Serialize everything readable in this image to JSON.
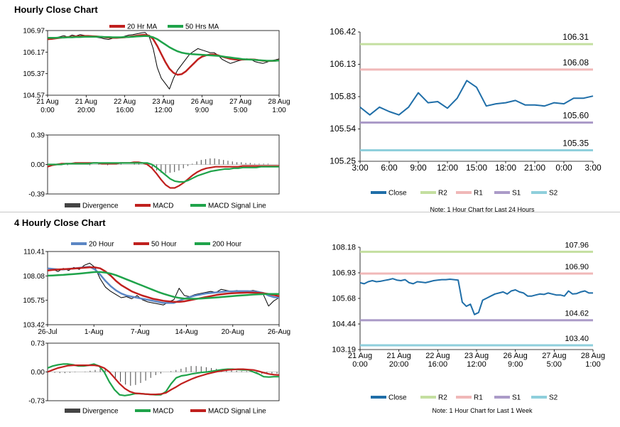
{
  "hourly_title": "Hourly Close Chart",
  "four_hourly_title": "4 Hourly Close Chart",
  "chart_data": [
    {
      "id": "c1",
      "type": "line",
      "legend": [
        "20 Hr MA",
        "50 Hrs MA"
      ],
      "y_ticks": [
        "106.97",
        "106.17",
        "105.37",
        "104.57"
      ],
      "ylim": [
        104.57,
        106.97
      ],
      "x_ticks": [
        [
          "21 Aug",
          "0:00"
        ],
        [
          "21 Aug",
          "20:00"
        ],
        [
          "22 Aug",
          "16:00"
        ],
        [
          "23 Aug",
          "12:00"
        ],
        [
          "26 Aug",
          "9:00"
        ],
        [
          "27 Aug",
          "5:00"
        ],
        [
          "28 Aug",
          "1:00"
        ]
      ],
      "series": [
        {
          "name": "Close",
          "color": "#000000",
          "values": [
            106.65,
            106.72,
            106.7,
            106.74,
            106.78,
            106.73,
            106.8,
            106.77,
            106.82,
            106.79,
            106.76,
            106.74,
            106.72,
            106.7,
            106.66,
            106.64,
            106.68,
            106.7,
            106.72,
            106.76,
            106.8,
            106.82,
            106.85,
            106.88,
            106.9,
            106.75,
            106.3,
            105.6,
            105.2,
            105.0,
            104.8,
            105.2,
            105.5,
            105.7,
            105.9,
            106.1,
            106.2,
            106.3,
            106.25,
            106.2,
            106.15,
            106.15,
            106.05,
            105.9,
            105.82,
            105.75,
            105.8,
            105.85,
            105.88,
            105.92,
            105.9,
            105.82,
            105.78,
            105.75,
            105.8,
            105.85,
            105.88,
            105.92
          ]
        },
        {
          "name": "20 Hr MA",
          "color": "#c0201e",
          "values": [
            106.65,
            106.66,
            106.68,
            106.7,
            106.72,
            106.73,
            106.74,
            106.75,
            106.76,
            106.77,
            106.77,
            106.76,
            106.75,
            106.74,
            106.72,
            106.71,
            106.7,
            106.7,
            106.71,
            106.72,
            106.74,
            106.76,
            106.78,
            106.8,
            106.81,
            106.78,
            106.65,
            106.4,
            106.1,
            105.8,
            105.55,
            105.4,
            105.33,
            105.35,
            105.45,
            105.6,
            105.75,
            105.9,
            106.0,
            106.05,
            106.08,
            106.08,
            106.05,
            106.0,
            105.96,
            105.92,
            105.9,
            105.89,
            105.89,
            105.9,
            105.9,
            105.89,
            105.87,
            105.85,
            105.84,
            105.84,
            105.85,
            105.87
          ]
        },
        {
          "name": "50 Hrs MA",
          "color": "#1fa34a",
          "values": [
            106.7,
            106.7,
            106.7,
            106.71,
            106.71,
            106.72,
            106.72,
            106.73,
            106.73,
            106.74,
            106.74,
            106.74,
            106.74,
            106.74,
            106.73,
            106.73,
            106.72,
            106.72,
            106.72,
            106.73,
            106.73,
            106.74,
            106.75,
            106.76,
            106.77,
            106.76,
            106.72,
            106.65,
            106.55,
            106.45,
            106.35,
            106.27,
            106.2,
            106.15,
            106.12,
            106.1,
            106.09,
            106.08,
            106.07,
            106.06,
            106.05,
            106.04,
            106.03,
            106.01,
            105.99,
            105.97,
            105.95,
            105.93,
            105.91,
            105.9,
            105.89,
            105.88,
            105.87,
            105.86,
            105.85,
            105.85,
            105.85,
            105.86
          ]
        }
      ]
    },
    {
      "id": "c2",
      "type": "bar+line",
      "legend": [
        "Divergence",
        "MACD",
        "MACD Signal Line"
      ],
      "y_ticks": [
        "0.39",
        "0.00",
        "-0.39"
      ],
      "ylim": [
        -0.39,
        0.39
      ],
      "divergence": [
        0.0,
        0.01,
        0.01,
        0.0,
        -0.01,
        0.0,
        0.01,
        0.01,
        0.0,
        -0.01,
        0.0,
        0.01,
        0.0,
        -0.01,
        0.0,
        0.01,
        0.01,
        0.0,
        0.0,
        0.01,
        0.01,
        0.0,
        -0.02,
        -0.05,
        -0.08,
        -0.11,
        -0.12,
        -0.11,
        -0.1,
        -0.08,
        -0.05,
        -0.02,
        0.01,
        0.04,
        0.06,
        0.07,
        0.08,
        0.08,
        0.07,
        0.06,
        0.05,
        0.04,
        0.03,
        0.03,
        0.02,
        0.02,
        0.01,
        0.01,
        0.01,
        0.01,
        0.0,
        0.0
      ],
      "series": [
        {
          "name": "MACD",
          "color": "#c0201e",
          "values": [
            -0.03,
            -0.01,
            0.0,
            0.01,
            0.01,
            0.01,
            0.02,
            0.02,
            0.02,
            0.02,
            0.02,
            0.02,
            0.01,
            0.01,
            0.01,
            0.01,
            0.02,
            0.02,
            0.02,
            0.03,
            0.03,
            0.02,
            0.0,
            -0.05,
            -0.12,
            -0.2,
            -0.27,
            -0.31,
            -0.31,
            -0.28,
            -0.24,
            -0.19,
            -0.14,
            -0.1,
            -0.07,
            -0.05,
            -0.04,
            -0.03,
            -0.03,
            -0.03,
            -0.03,
            -0.03,
            -0.03,
            -0.02,
            -0.02,
            -0.02,
            -0.02,
            -0.02,
            -0.02,
            -0.02,
            -0.02,
            -0.02
          ]
        },
        {
          "name": "MACD Signal Line",
          "color": "#1fa34a",
          "values": [
            0.0,
            0.0,
            0.0,
            0.0,
            0.01,
            0.01,
            0.01,
            0.01,
            0.01,
            0.01,
            0.02,
            0.02,
            0.02,
            0.02,
            0.02,
            0.02,
            0.02,
            0.02,
            0.02,
            0.02,
            0.02,
            0.02,
            0.02,
            0.0,
            -0.04,
            -0.09,
            -0.14,
            -0.19,
            -0.22,
            -0.23,
            -0.23,
            -0.21,
            -0.18,
            -0.15,
            -0.13,
            -0.11,
            -0.09,
            -0.08,
            -0.07,
            -0.06,
            -0.06,
            -0.05,
            -0.05,
            -0.04,
            -0.04,
            -0.04,
            -0.04,
            -0.03,
            -0.03,
            -0.03,
            -0.03,
            -0.03
          ]
        }
      ]
    },
    {
      "id": "c3",
      "type": "line",
      "legend": [
        "Close",
        "R2",
        "R1",
        "S1",
        "S2"
      ],
      "note": "Note: 1 Hour Chart for Last 24 Hours",
      "y_ticks": [
        "106.42",
        "106.13",
        "105.83",
        "105.54",
        "105.25"
      ],
      "ylim": [
        105.25,
        106.42
      ],
      "x_ticks": [
        "3:00",
        "6:00",
        "9:00",
        "12:00",
        "15:00",
        "18:00",
        "21:00",
        "0:00",
        "3:00"
      ],
      "levels": [
        {
          "name": "R2",
          "value": 106.31,
          "label": "106.31",
          "color": "#c4dfa0"
        },
        {
          "name": "R1",
          "value": 106.08,
          "label": "106.08",
          "color": "#f0b8b8"
        },
        {
          "name": "S1",
          "value": 105.6,
          "label": "105.60",
          "color": "#ab9bc8"
        },
        {
          "name": "S2",
          "value": 105.35,
          "label": "105.35",
          "color": "#8fcfdc"
        }
      ],
      "series": [
        {
          "name": "Close",
          "color": "#1f6ea8",
          "values": [
            105.74,
            105.67,
            105.74,
            105.7,
            105.67,
            105.74,
            105.87,
            105.78,
            105.79,
            105.73,
            105.82,
            105.98,
            105.92,
            105.75,
            105.77,
            105.78,
            105.8,
            105.76,
            105.76,
            105.75,
            105.78,
            105.77,
            105.82,
            105.82,
            105.84
          ]
        }
      ]
    },
    {
      "id": "c4",
      "type": "line",
      "legend": [
        "20 Hour",
        "50 Hour",
        "200 Hour"
      ],
      "y_ticks": [
        "110.41",
        "108.08",
        "105.75",
        "103.42"
      ],
      "ylim": [
        103.42,
        110.41
      ],
      "x_ticks": [
        "26-Jul",
        "1-Aug",
        "7-Aug",
        "14-Aug",
        "20-Aug",
        "26-Aug"
      ],
      "series": [
        {
          "name": "Close",
          "color": "#000000",
          "values": [
            108.6,
            108.7,
            108.5,
            108.8,
            108.6,
            108.9,
            108.7,
            109.1,
            109.3,
            108.9,
            107.8,
            107.0,
            106.6,
            106.3,
            106.0,
            106.1,
            105.9,
            106.2,
            105.8,
            105.6,
            105.5,
            105.4,
            105.3,
            105.6,
            105.8,
            106.9,
            106.2,
            106.1,
            106.3,
            106.4,
            106.5,
            106.6,
            106.5,
            106.8,
            106.7,
            106.6,
            106.7,
            106.5,
            106.6,
            106.7,
            106.6,
            106.3,
            105.2,
            105.7,
            106.0
          ]
        },
        {
          "name": "20 Hour",
          "color": "#5b86c4",
          "values": [
            108.8,
            108.75,
            108.7,
            108.7,
            108.75,
            108.8,
            108.85,
            108.9,
            108.95,
            108.7,
            108.2,
            107.6,
            107.1,
            106.7,
            106.4,
            106.2,
            106.1,
            106.0,
            105.9,
            105.8,
            105.7,
            105.6,
            105.5,
            105.5,
            105.5,
            105.7,
            105.9,
            106.05,
            106.2,
            106.3,
            106.4,
            106.45,
            106.5,
            106.55,
            106.6,
            106.6,
            106.62,
            106.62,
            106.62,
            106.6,
            106.55,
            106.45,
            106.2,
            106.05,
            106.0
          ]
        },
        {
          "name": "50 Hour",
          "color": "#c0201e",
          "values": [
            108.6,
            108.65,
            108.7,
            108.72,
            108.75,
            108.78,
            108.82,
            108.86,
            108.9,
            108.9,
            108.8,
            108.5,
            108.1,
            107.6,
            107.2,
            106.9,
            106.6,
            106.4,
            106.2,
            106.05,
            105.9,
            105.8,
            105.7,
            105.65,
            105.6,
            105.6,
            105.65,
            105.75,
            105.85,
            105.95,
            106.05,
            106.15,
            106.25,
            106.32,
            106.38,
            106.42,
            106.45,
            106.47,
            106.48,
            106.48,
            106.46,
            106.42,
            106.35,
            106.25,
            106.15
          ]
        },
        {
          "name": "200 Hour",
          "color": "#1fa34a",
          "values": [
            108.1,
            108.12,
            108.15,
            108.18,
            108.22,
            108.26,
            108.3,
            108.35,
            108.4,
            108.45,
            108.45,
            108.4,
            108.3,
            108.15,
            107.95,
            107.75,
            107.55,
            107.35,
            107.15,
            106.95,
            106.75,
            106.55,
            106.38,
            106.22,
            106.08,
            105.98,
            105.92,
            105.9,
            105.9,
            105.92,
            105.95,
            105.98,
            106.02,
            106.06,
            106.1,
            106.14,
            106.18,
            106.22,
            106.26,
            106.3,
            106.32,
            106.34,
            106.35,
            106.36,
            106.36
          ]
        }
      ]
    },
    {
      "id": "c5",
      "type": "bar+line",
      "legend": [
        "Divergence",
        "MACD",
        "MACD Signal Line"
      ],
      "y_ticks": [
        "0.73",
        "0.00",
        "-0.73"
      ],
      "ylim": [
        -0.73,
        0.73
      ],
      "divergence": [
        0.0,
        -0.02,
        -0.03,
        -0.03,
        -0.02,
        -0.01,
        0.0,
        0.01,
        0.03,
        0.05,
        0.08,
        0.1,
        0.0,
        -0.15,
        -0.25,
        -0.32,
        -0.35,
        -0.33,
        -0.28,
        -0.22,
        -0.15,
        -0.08,
        -0.04,
        0.0,
        0.02,
        0.05,
        0.08,
        0.12,
        0.15,
        0.15,
        0.14,
        0.12,
        0.1,
        0.08,
        0.06,
        0.05,
        0.04,
        0.03,
        0.02,
        0.02,
        0.01,
        -0.02,
        -0.05,
        -0.05,
        -0.04,
        -0.04
      ],
      "series": [
        {
          "name": "MACD",
          "color": "#1fa34a",
          "values": [
            0.1,
            0.15,
            0.18,
            0.2,
            0.2,
            0.18,
            0.15,
            0.15,
            0.17,
            0.2,
            0.15,
            0.0,
            -0.25,
            -0.45,
            -0.58,
            -0.6,
            -0.58,
            -0.55,
            -0.55,
            -0.56,
            -0.57,
            -0.58,
            -0.58,
            -0.5,
            -0.3,
            -0.15,
            -0.1,
            -0.08,
            -0.05,
            -0.03,
            -0.01,
            0.0,
            0.02,
            0.04,
            0.06,
            0.07,
            0.07,
            0.06,
            0.05,
            0.05,
            0.0,
            -0.05,
            -0.12,
            -0.13,
            -0.12,
            -0.12
          ]
        },
        {
          "name": "MACD Signal Line",
          "color": "#c0201e",
          "values": [
            0.0,
            0.05,
            0.1,
            0.13,
            0.16,
            0.17,
            0.17,
            0.17,
            0.17,
            0.17,
            0.15,
            0.1,
            0.0,
            -0.15,
            -0.3,
            -0.42,
            -0.5,
            -0.54,
            -0.55,
            -0.56,
            -0.57,
            -0.57,
            -0.56,
            -0.53,
            -0.45,
            -0.38,
            -0.3,
            -0.24,
            -0.18,
            -0.13,
            -0.09,
            -0.05,
            -0.02,
            0.01,
            0.03,
            0.05,
            0.06,
            0.07,
            0.07,
            0.06,
            0.05,
            0.02,
            -0.02,
            -0.05,
            -0.07,
            -0.08
          ]
        }
      ]
    },
    {
      "id": "c6",
      "type": "line",
      "legend": [
        "Close",
        "R2",
        "R1",
        "S1",
        "S2"
      ],
      "note": "Note: 1 Hour Chart for Last 1 Week",
      "y_ticks": [
        "108.18",
        "106.93",
        "105.68",
        "104.44",
        "103.19"
      ],
      "ylim": [
        103.19,
        108.18
      ],
      "x_ticks": [
        [
          "21 Aug",
          "0:00"
        ],
        [
          "21 Aug",
          "20:00"
        ],
        [
          "22 Aug",
          "16:00"
        ],
        [
          "23 Aug",
          "12:00"
        ],
        [
          "26 Aug",
          "9:00"
        ],
        [
          "27 Aug",
          "5:00"
        ],
        [
          "28 Aug",
          "1:00"
        ]
      ],
      "levels": [
        {
          "name": "R2",
          "value": 107.96,
          "label": "107.96",
          "color": "#c4dfa0"
        },
        {
          "name": "R1",
          "value": 106.9,
          "label": "106.90",
          "color": "#f0b8b8"
        },
        {
          "name": "S1",
          "value": 104.62,
          "label": "104.62",
          "color": "#ab9bc8"
        },
        {
          "name": "S2",
          "value": 103.4,
          "label": "103.40",
          "color": "#8fcfdc"
        }
      ],
      "series": [
        {
          "name": "Close",
          "color": "#1f6ea8",
          "values": [
            106.45,
            106.4,
            106.5,
            106.55,
            106.5,
            106.52,
            106.56,
            106.6,
            106.65,
            106.58,
            106.55,
            106.6,
            106.45,
            106.4,
            106.5,
            106.48,
            106.45,
            106.5,
            106.55,
            106.58,
            106.6,
            106.6,
            106.62,
            106.6,
            106.58,
            105.5,
            105.3,
            105.4,
            104.9,
            105.0,
            105.6,
            105.7,
            105.8,
            105.9,
            105.95,
            106.0,
            105.9,
            106.05,
            106.1,
            106.0,
            105.95,
            105.8,
            105.8,
            105.85,
            105.9,
            105.88,
            105.95,
            105.9,
            105.85,
            105.85,
            105.8,
            106.05,
            105.9,
            105.92,
            106.0,
            106.05,
            105.95,
            105.95
          ]
        }
      ]
    }
  ]
}
